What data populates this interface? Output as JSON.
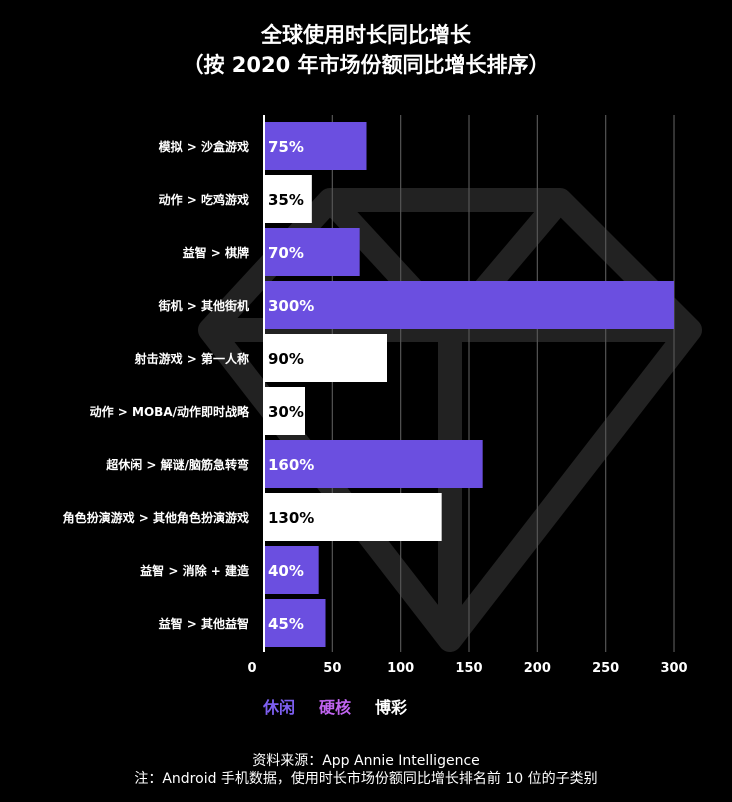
{
  "title_line1": "全球使用时长同比增长",
  "title_line2": "（按 2020 年市场份额同比增长排序）",
  "colors": {
    "casual": "#6b4fe0",
    "hardcore": "#a24fe0",
    "casino": "#ffffff",
    "background": "#000000",
    "grid": "#555555"
  },
  "legend": [
    {
      "label": "休闲",
      "color": "#7d5ff0"
    },
    {
      "label": "硬核",
      "color": "#c064f0"
    },
    {
      "label": "博彩",
      "color": "#ffffff"
    }
  ],
  "chart_data": {
    "type": "bar",
    "orientation": "horizontal",
    "categories": [
      "模拟 > 沙盒游戏",
      "动作 > 吃鸡游戏",
      "益智 > 棋牌",
      "街机 > 其他街机",
      "射击游戏 > 第一人称",
      "动作 > MOBA/动作即时战略",
      "超休闲 > 解谜/脑筋急转弯",
      "角色扮演游戏 > 其他角色扮演游戏",
      "益智 > 消除 + 建造",
      "益智 > 其他益智"
    ],
    "values": [
      75,
      35,
      70,
      300,
      90,
      30,
      160,
      130,
      40,
      45
    ],
    "data_labels": [
      "75%",
      "35%",
      "70%",
      "300%",
      "90%",
      "30%",
      "160%",
      "130%",
      "40%",
      "45%"
    ],
    "bar_colors": [
      "#6b4fe0",
      "#ffffff",
      "#6b4fe0",
      "#6b4fe0",
      "#ffffff",
      "#ffffff",
      "#6b4fe0",
      "#ffffff",
      "#6b4fe0",
      "#6b4fe0"
    ],
    "x_ticks": [
      0,
      50,
      100,
      150,
      200,
      250,
      300
    ],
    "x_tick_labels": [
      "0",
      "50",
      "100",
      "150",
      "200",
      "250",
      "300"
    ],
    "xlim": [
      0,
      300
    ],
    "grid": "vertical",
    "legend_position": "bottom"
  },
  "footer": {
    "source": "资料来源：App Annie Intelligence",
    "note": "注：Android 手机数据，使用时长市场份额同比增长排名前 10 位的子类别"
  }
}
